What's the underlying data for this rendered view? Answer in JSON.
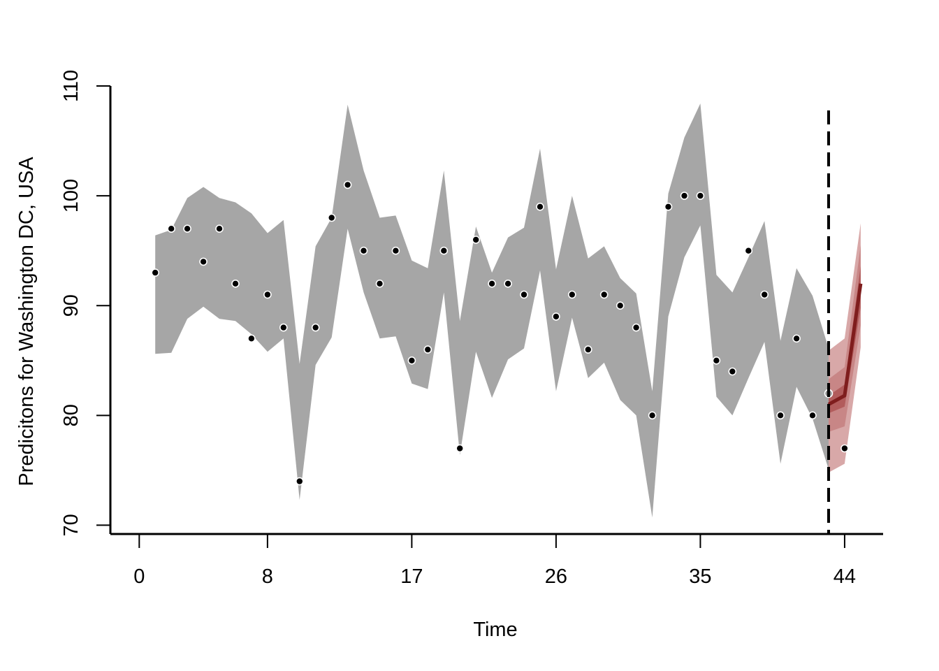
{
  "chart_data": {
    "type": "line",
    "title": "",
    "xlabel": "Time",
    "ylabel": "Predicitons for Washington DC, USA",
    "x_ticks": [
      0,
      8,
      17,
      26,
      35,
      44
    ],
    "y_ticks": [
      70,
      80,
      90,
      100,
      110
    ],
    "xlim": [
      -1.8,
      46.4
    ],
    "ylim": [
      69.2,
      110
    ],
    "forecast_start": 43,
    "grid": false,
    "legend": "none",
    "colors": {
      "band": "#a6a6a6",
      "points": "#000000",
      "forecast_line": "#7f1d1d",
      "forecast_band_outer": "#d8a8a8",
      "forecast_band_mid": "#c88686",
      "forecast_band_inner": "#b25c5c"
    },
    "observed": {
      "x": [
        1,
        2,
        3,
        4,
        5,
        6,
        7,
        8,
        9,
        10,
        11,
        12,
        13,
        14,
        15,
        16,
        17,
        18,
        19,
        20,
        21,
        22,
        23,
        24,
        25,
        26,
        27,
        28,
        29,
        30,
        31,
        32,
        33,
        34,
        35,
        36,
        37,
        38,
        39,
        40,
        41,
        42,
        43
      ],
      "y": [
        93,
        97,
        97,
        94,
        97,
        92,
        87,
        91,
        88,
        74,
        88,
        98,
        101,
        95,
        92,
        95,
        85,
        86,
        95,
        77,
        96,
        92,
        92,
        91,
        99,
        89,
        91,
        86,
        91,
        90,
        88,
        80,
        99,
        100,
        100,
        85,
        84,
        95,
        91,
        80,
        87,
        80,
        82
      ]
    },
    "fitted_band": {
      "x": [
        1,
        2,
        3,
        4,
        5,
        6,
        7,
        8,
        9,
        10,
        11,
        12,
        13,
        14,
        15,
        16,
        17,
        18,
        19,
        20,
        21,
        22,
        23,
        24,
        25,
        26,
        27,
        28,
        29,
        30,
        31,
        32,
        33,
        34,
        35,
        36,
        37,
        38,
        39,
        40,
        41,
        42,
        43
      ],
      "lower": [
        85.6,
        85.7,
        88.8,
        89.9,
        88.8,
        88.6,
        87.4,
        85.8,
        87.0,
        72.3,
        84.6,
        87.1,
        97.0,
        91.2,
        87.0,
        87.2,
        82.9,
        82.4,
        91.2,
        76.4,
        85.8,
        81.6,
        85.1,
        86.1,
        93.2,
        82.2,
        88.9,
        83.4,
        84.8,
        81.4,
        80.0,
        70.7,
        89.0,
        94.4,
        97.3,
        81.7,
        80.0,
        83.4,
        86.7,
        75.6,
        82.6,
        79.7,
        75.1
      ],
      "upper": [
        96.4,
        96.9,
        99.8,
        100.8,
        99.8,
        99.4,
        98.4,
        96.6,
        97.8,
        84.7,
        95.4,
        98.0,
        108.3,
        102.3,
        98.0,
        98.2,
        94.1,
        93.4,
        102.3,
        88.6,
        97.2,
        93.0,
        96.2,
        97.1,
        104.3,
        93.3,
        100.0,
        94.3,
        95.4,
        92.5,
        91.1,
        82.2,
        100.2,
        105.3,
        108.4,
        92.8,
        91.2,
        94.4,
        97.7,
        86.8,
        93.4,
        90.9,
        86.1
      ]
    },
    "forecast": {
      "x": [
        43,
        44,
        45
      ],
      "median": [
        81,
        81.8,
        92
      ],
      "band_50": {
        "lower": [
          80.2,
          80.8,
          89.8
        ],
        "upper": [
          81.8,
          82.8,
          93.6
        ]
      },
      "band_80": {
        "lower": [
          78.5,
          79,
          88.2
        ],
        "upper": [
          83.3,
          84.4,
          95.5
        ]
      },
      "band_95": {
        "lower": [
          74.8,
          75.6,
          86.2
        ],
        "upper": [
          85.9,
          87,
          97.5
        ]
      }
    },
    "forecast_observed": {
      "x": [
        44
      ],
      "y": [
        77
      ]
    }
  }
}
